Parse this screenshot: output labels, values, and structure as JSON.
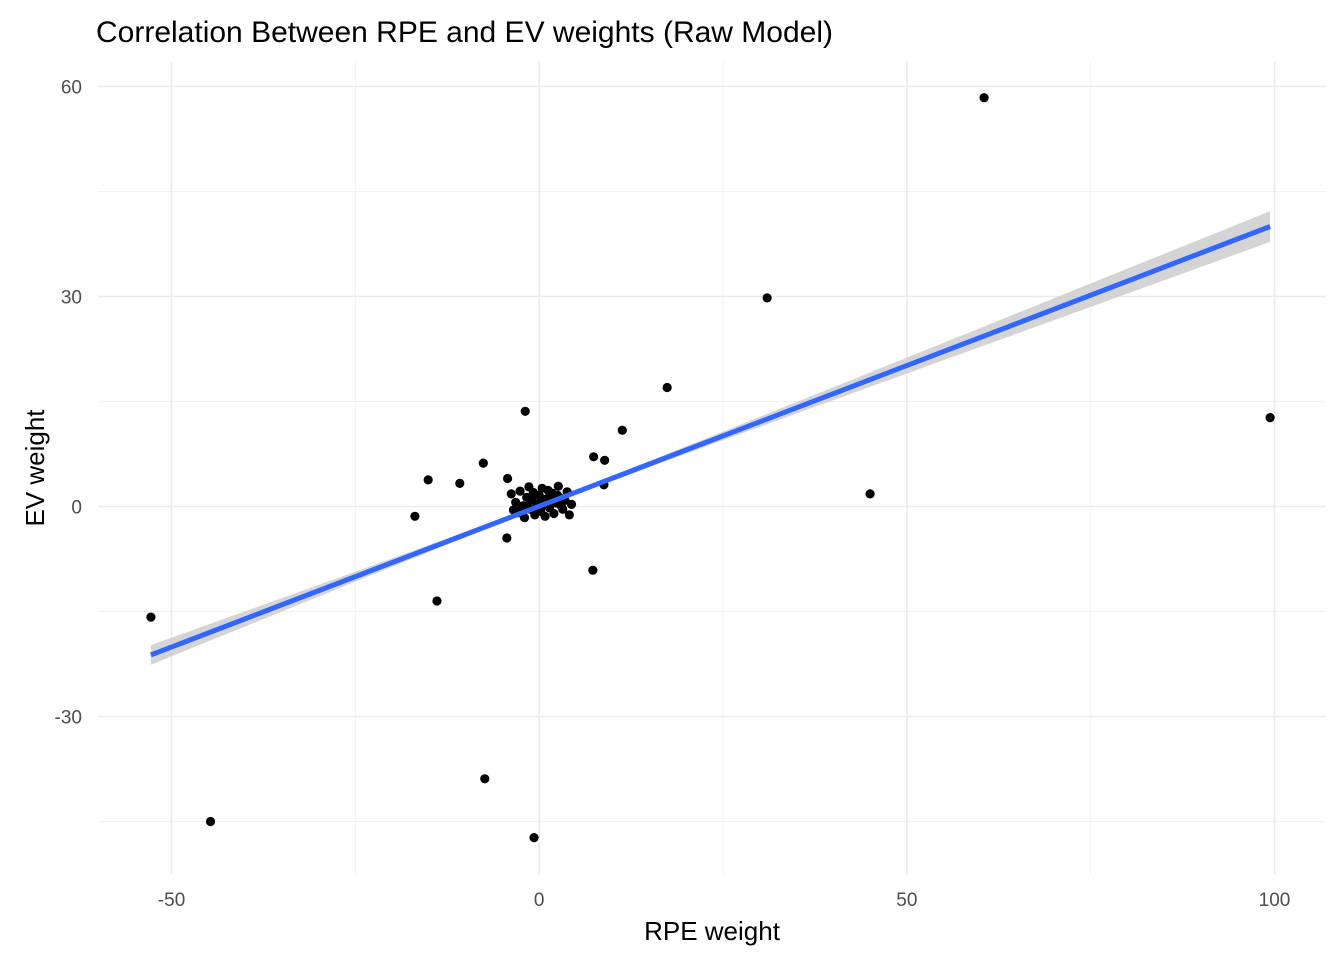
{
  "chart_data": {
    "type": "scatter",
    "title": "Correlation Between RPE and EV weights (Raw Model)",
    "xlabel": "RPE weight",
    "ylabel": "EV weight",
    "xlim": [
      -60,
      107
    ],
    "ylim": [
      -52.5,
      63.5
    ],
    "x_ticks": [
      -50,
      0,
      50,
      100
    ],
    "x_tick_labels": [
      "-50",
      "0",
      "50",
      "100"
    ],
    "y_ticks": [
      -30,
      0,
      30,
      60
    ],
    "y_tick_labels": [
      "-30",
      "0",
      "30",
      "60"
    ],
    "x_minor_ticks": [
      -25,
      25,
      75
    ],
    "y_minor_ticks": [
      -45,
      -15,
      15,
      45
    ],
    "grid": true,
    "legend": "none",
    "colors": {
      "points": "#000000",
      "fit_line": "#3366ff",
      "confidence_band": "#cccccc",
      "grid": "#ebebeb"
    },
    "points": [
      [
        -52.8,
        -15.8
      ],
      [
        -44.7,
        -45.0
      ],
      [
        -16.9,
        -1.4
      ],
      [
        -15.1,
        3.8
      ],
      [
        -13.9,
        -13.5
      ],
      [
        -10.8,
        3.3
      ],
      [
        -7.6,
        6.2
      ],
      [
        -7.4,
        -38.9
      ],
      [
        -4.4,
        -4.5
      ],
      [
        -4.3,
        4.0
      ],
      [
        -1.9,
        13.6
      ],
      [
        -0.7,
        -47.3
      ],
      [
        7.4,
        7.1
      ],
      [
        7.3,
        -9.1
      ],
      [
        8.9,
        6.6
      ],
      [
        8.8,
        3.1
      ],
      [
        11.3,
        10.9
      ],
      [
        17.4,
        17.0
      ],
      [
        31.0,
        29.8
      ],
      [
        45.0,
        1.8
      ],
      [
        60.5,
        58.4
      ],
      [
        99.4,
        12.7
      ],
      [
        -3.8,
        1.8
      ],
      [
        -3.2,
        0.6
      ],
      [
        -2.8,
        -0.9
      ],
      [
        -2.6,
        2.2
      ],
      [
        -2.2,
        0.1
      ],
      [
        -2.0,
        -1.6
      ],
      [
        -1.7,
        1.3
      ],
      [
        -1.4,
        2.8
      ],
      [
        -1.2,
        -0.4
      ],
      [
        -1.0,
        0.9
      ],
      [
        -0.8,
        2.0
      ],
      [
        -0.6,
        -1.2
      ],
      [
        -0.3,
        0.4
      ],
      [
        0.0,
        1.6
      ],
      [
        0.2,
        -0.7
      ],
      [
        0.4,
        2.6
      ],
      [
        0.6,
        0.2
      ],
      [
        0.8,
        -1.4
      ],
      [
        1.0,
        1.1
      ],
      [
        1.2,
        2.3
      ],
      [
        1.4,
        -0.2
      ],
      [
        1.6,
        0.8
      ],
      [
        1.8,
        1.9
      ],
      [
        2.0,
        -1.0
      ],
      [
        2.3,
        0.5
      ],
      [
        2.6,
        2.9
      ],
      [
        2.9,
        1.2
      ],
      [
        3.2,
        -0.4
      ],
      [
        3.5,
        0.9
      ],
      [
        3.8,
        2.1
      ],
      [
        4.1,
        -1.2
      ],
      [
        4.4,
        0.3
      ],
      [
        -2.4,
        -0.3
      ],
      [
        -1.6,
        0.0
      ],
      [
        -0.4,
        -0.2
      ],
      [
        0.5,
        0.7
      ],
      [
        1.5,
        0.3
      ],
      [
        2.5,
        1.6
      ],
      [
        3.0,
        0.1
      ],
      [
        -3.5,
        -0.5
      ]
    ],
    "fit": {
      "method": "linear",
      "x_range": [
        -52.8,
        99.4
      ],
      "y_range": [
        -21.2,
        40.0
      ],
      "se_lower": [
        -22.6,
        37.8
      ],
      "se_upper": [
        -19.8,
        42.2
      ],
      "se_at_zero": 0.3
    }
  }
}
